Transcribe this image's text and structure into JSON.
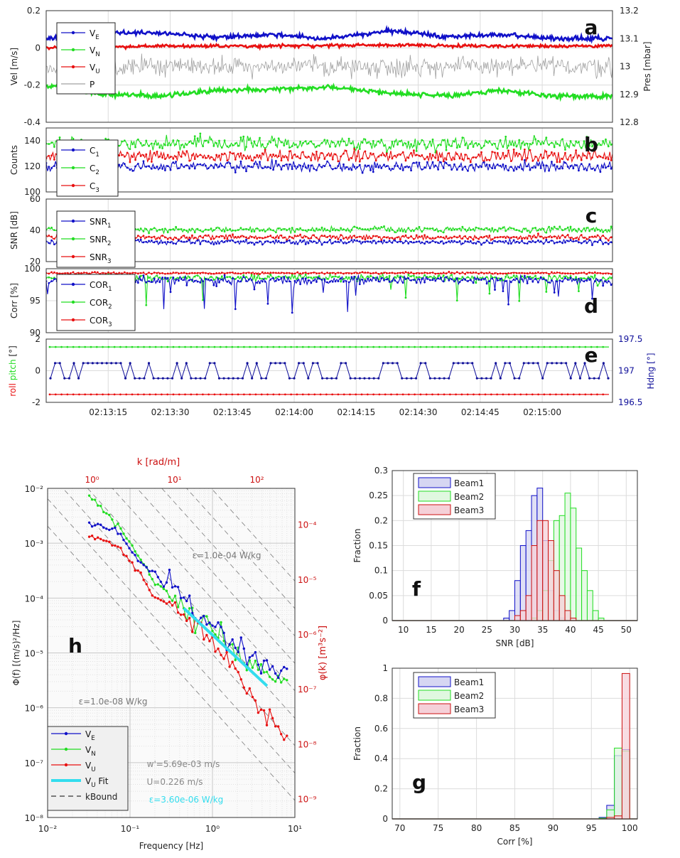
{
  "colors": {
    "blue": "#1010c8",
    "green": "#22dd22",
    "red": "#e81010",
    "gray": "#a0a0a0",
    "cyan": "#33ddee",
    "darkred": "#cc1111",
    "navy": "#10109a",
    "hist_blue_fill": "#d6d6f2",
    "hist_green_fill": "#e0f8e0",
    "hist_red_fill": "#f5d0d8"
  },
  "chart_data": [
    {
      "id": "a",
      "type": "line",
      "panel_letter": "a",
      "ylabel": "Vel [m/s]",
      "y2label": "Pres [mbar]",
      "ylim": [
        -0.4,
        0.2
      ],
      "yticks": [
        "0.2",
        "0",
        "-0.2",
        "-0.4"
      ],
      "ytick_values": [
        0.2,
        0,
        -0.2,
        -0.4
      ],
      "y2lim": [
        12.8,
        13.2
      ],
      "y2ticks": [
        "13.2",
        "13.1",
        "13",
        "12.9",
        "12.8"
      ],
      "y2tick_values": [
        13.2,
        13.1,
        13.0,
        12.9,
        12.8
      ],
      "x_range_seconds": [
        0,
        137
      ],
      "series": [
        {
          "name": "V",
          "sub": "E",
          "label": "V_E",
          "color": "blue",
          "baseline": 0.07,
          "noise": 0.012,
          "seed": 11,
          "trend": [
            [
              0,
              0.05
            ],
            [
              0.1,
              0.08
            ],
            [
              0.2,
              0.08
            ],
            [
              0.3,
              0.06
            ],
            [
              0.4,
              0.07
            ],
            [
              0.5,
              0.05
            ],
            [
              0.6,
              0.09
            ],
            [
              0.66,
              0.08
            ],
            [
              0.7,
              0.06
            ],
            [
              0.8,
              0.07
            ],
            [
              0.9,
              0.05
            ],
            [
              1,
              0.05
            ]
          ]
        },
        {
          "name": "V",
          "sub": "N",
          "label": "V_N",
          "color": "green",
          "baseline": -0.24,
          "noise": 0.012,
          "seed": 12,
          "trend": [
            [
              0,
              -0.2
            ],
            [
              0.1,
              -0.25
            ],
            [
              0.2,
              -0.26
            ],
            [
              0.3,
              -0.23
            ],
            [
              0.4,
              -0.22
            ],
            [
              0.5,
              -0.21
            ],
            [
              0.6,
              -0.24
            ],
            [
              0.7,
              -0.26
            ],
            [
              0.8,
              -0.23
            ],
            [
              0.9,
              -0.26
            ],
            [
              1,
              -0.26
            ]
          ]
        },
        {
          "name": "V",
          "sub": "U",
          "label": "V_U",
          "color": "red",
          "baseline": 0.01,
          "noise": 0.008,
          "seed": 13,
          "trend": [
            [
              0,
              0.0
            ],
            [
              0.2,
              0.01
            ],
            [
              0.4,
              0.01
            ],
            [
              0.6,
              0.015
            ],
            [
              0.8,
              0.01
            ],
            [
              1,
              0.01
            ]
          ]
        },
        {
          "name": "P",
          "sub": "",
          "label": "P",
          "color": "gray",
          "axis": "right",
          "baseline": 13.0,
          "noise": 0.035,
          "seed": 14,
          "trend": [
            [
              0,
              13.0
            ],
            [
              1,
              13.0
            ]
          ]
        }
      ]
    },
    {
      "id": "b",
      "type": "line",
      "panel_letter": "b",
      "ylabel": "Counts",
      "ylim": [
        100,
        150
      ],
      "yticks": [
        "140",
        "120",
        "100"
      ],
      "ytick_values": [
        140,
        120,
        100
      ],
      "series": [
        {
          "name": "C",
          "sub": "1",
          "label": "C_1",
          "color": "blue",
          "baseline": 120,
          "noise": 4,
          "seed": 21
        },
        {
          "name": "C",
          "sub": "2",
          "label": "C_2",
          "color": "green",
          "baseline": 138,
          "noise": 5,
          "seed": 22
        },
        {
          "name": "C",
          "sub": "3",
          "label": "C_3",
          "color": "red",
          "baseline": 128,
          "noise": 4.5,
          "seed": 23
        }
      ]
    },
    {
      "id": "c",
      "type": "line",
      "panel_letter": "c",
      "ylabel": "SNR [dB]",
      "ylim": [
        20,
        60
      ],
      "yticks": [
        "60",
        "40",
        "20"
      ],
      "ytick_values": [
        60,
        40,
        20
      ],
      "series": [
        {
          "name": "SNR",
          "sub": "1",
          "label": "SNR_1",
          "color": "blue",
          "baseline": 32.5,
          "noise": 1.5,
          "seed": 31
        },
        {
          "name": "SNR",
          "sub": "2",
          "label": "SNR_2",
          "color": "green",
          "baseline": 40.5,
          "noise": 1.8,
          "seed": 32
        },
        {
          "name": "SNR",
          "sub": "3",
          "label": "SNR_3",
          "color": "red",
          "baseline": 35.5,
          "noise": 1.6,
          "seed": 33
        }
      ]
    },
    {
      "id": "d",
      "type": "line",
      "panel_letter": "d",
      "ylabel": "Corr [%]",
      "ylim": [
        90,
        100
      ],
      "yticks": [
        "100",
        "95",
        "90"
      ],
      "ytick_values": [
        100,
        95,
        90
      ],
      "series": [
        {
          "name": "COR",
          "sub": "1",
          "label": "COR_1",
          "color": "blue",
          "baseline": 98.2,
          "noise": 0.6,
          "seed": 41,
          "dips": 0.06,
          "dipmin": 93
        },
        {
          "name": "COR",
          "sub": "2",
          "label": "COR_2",
          "color": "green",
          "baseline": 98.6,
          "noise": 0.5,
          "seed": 42,
          "dips": 0.05,
          "dipmin": 94
        },
        {
          "name": "COR",
          "sub": "3",
          "label": "COR_3",
          "color": "red",
          "baseline": 99.3,
          "noise": 0.15,
          "seed": 43
        }
      ]
    },
    {
      "id": "e",
      "type": "line",
      "panel_letter": "e",
      "ylabel_roll": "roll",
      "ylabel_pitch": "pitch",
      "ylabel_unit": "[°]",
      "y2label": "Hdng [°]",
      "ylim": [
        -2,
        2
      ],
      "yticks": [
        "2",
        "0",
        "-2"
      ],
      "ytick_values": [
        2,
        0,
        -2
      ],
      "y2lim": [
        196.5,
        197.5
      ],
      "y2ticks": [
        "197.5",
        "197",
        "196.5"
      ],
      "y2tick_values": [
        197.5,
        197.0,
        196.5
      ],
      "xticks": [
        "02:13:15",
        "02:13:30",
        "02:13:45",
        "02:14:00",
        "02:14:15",
        "02:14:30",
        "02:14:45",
        "02:15:00"
      ],
      "xtick_seconds": [
        15,
        30,
        45,
        60,
        75,
        90,
        105,
        120
      ],
      "series": [
        {
          "name": "pitch",
          "color": "green",
          "value": 1.5
        },
        {
          "name": "roll",
          "color": "red",
          "value": -1.5
        },
        {
          "name": "Hdng",
          "color": "navy",
          "axis": "right",
          "levels": [
            197.12,
            196.88
          ],
          "seed": 51
        }
      ]
    },
    {
      "id": "h",
      "type": "line",
      "scale": "log-log",
      "panel_letter": "h",
      "xlabel": "Frequency [Hz]",
      "ylabel": "Φ(f) [(m/s)²/Hz]",
      "top_xlabel": "k [rad/m]",
      "right_ylabel": "φ(k) [m³s⁻²]",
      "xlim": [
        0.01,
        10
      ],
      "ylim": [
        1e-08,
        0.01
      ],
      "xticks": [
        "10⁻²",
        "10⁻¹",
        "10⁰",
        "10¹"
      ],
      "xtick_values": [
        0.01,
        0.1,
        1,
        10
      ],
      "yticks": [
        "10⁻²",
        "10⁻³",
        "10⁻⁴",
        "10⁻⁵",
        "10⁻⁶",
        "10⁻⁷",
        "10⁻⁸"
      ],
      "ytick_values": [
        0.01,
        0.001,
        0.0001,
        1e-05,
        1e-06,
        1e-07,
        1e-08
      ],
      "top_ticks": [
        "10⁰",
        "10¹",
        "10²"
      ],
      "top_tick_freqs": [
        0.0346,
        0.346,
        3.46
      ],
      "right_ticks": [
        "10⁻⁴",
        "10⁻⁵",
        "10⁻⁶",
        "10⁻⁷",
        "10⁻⁸",
        "10⁻⁹"
      ],
      "right_tick_values": [
        0.0022,
        0.00022,
        2.2e-05,
        2.2e-06,
        2.2e-07,
        2.2e-08
      ],
      "series": [
        {
          "name": "V",
          "sub": "E",
          "label": "V_E",
          "color": "blue",
          "seed": 61,
          "points": [
            [
              0.032,
              0.0022
            ],
            [
              0.064,
              0.002
            ],
            [
              0.1,
              0.0008
            ],
            [
              0.13,
              0.0004
            ],
            [
              0.2,
              0.0003
            ],
            [
              0.25,
              0.00015
            ],
            [
              0.3,
              0.00025
            ],
            [
              0.35,
              0.0002
            ],
            [
              0.5,
              7e-05
            ],
            [
              1,
              3e-05
            ],
            [
              2,
              1.2e-05
            ],
            [
              3,
              8e-06
            ],
            [
              5,
              5e-06
            ],
            [
              8,
              4e-06
            ]
          ]
        },
        {
          "name": "V",
          "sub": "N",
          "label": "V_N",
          "color": "green",
          "seed": 62,
          "points": [
            [
              0.032,
              0.0075
            ],
            [
              0.064,
              0.0025
            ],
            [
              0.1,
              0.001
            ],
            [
              0.15,
              0.0004
            ],
            [
              0.2,
              0.00018
            ],
            [
              0.3,
              0.00012
            ],
            [
              0.5,
              6e-05
            ],
            [
              1,
              2.5e-05
            ],
            [
              2,
              1e-05
            ],
            [
              3,
              6e-06
            ],
            [
              5,
              4e-06
            ],
            [
              8,
              3e-06
            ]
          ]
        },
        {
          "name": "V",
          "sub": "U",
          "label": "V_U",
          "color": "red",
          "seed": 63,
          "points": [
            [
              0.032,
              0.0013
            ],
            [
              0.064,
              0.001
            ],
            [
              0.1,
              0.0005
            ],
            [
              0.15,
              0.0002
            ],
            [
              0.2,
              0.0001
            ],
            [
              0.3,
              8e-05
            ],
            [
              0.5,
              4e-05
            ],
            [
              1,
              1.5e-05
            ],
            [
              2,
              5e-06
            ],
            [
              3,
              2e-06
            ],
            [
              5,
              6e-07
            ],
            [
              8,
              2.5e-07
            ]
          ]
        },
        {
          "name": "V_U Fit",
          "label": "V_U Fit",
          "color": "cyan",
          "points": [
            [
              0.45,
              6.5e-05
            ],
            [
              4.6,
              2.5e-06
            ]
          ]
        },
        {
          "name": "kBound",
          "label": "kBound",
          "color": "#333333",
          "style": "dashed"
        }
      ],
      "reference_lines": [
        {
          "label": "ε=1.0e-04 W/kg",
          "at_freq": 0.5,
          "value": 0.00053
        },
        {
          "label": "ε=1.0e-08 W/kg",
          "at_freq": 0.5,
          "value": 1.15e-06
        }
      ],
      "annotations": [
        "w'=5.69e-03 m/s",
        "U=0.226 m/s",
        "ε=3.60e-06 W/kg"
      ],
      "legend": [
        "V_E",
        "V_N",
        "V_U",
        "V_U Fit",
        "kBound"
      ]
    },
    {
      "id": "f",
      "type": "bar",
      "style": "histogram",
      "panel_letter": "f",
      "xlabel": "SNR [dB]",
      "ylabel": "Fraction",
      "xlim": [
        8,
        52
      ],
      "ylim": [
        0,
        0.3
      ],
      "xticks": [
        "10",
        "15",
        "20",
        "25",
        "30",
        "35",
        "40",
        "45",
        "50"
      ],
      "xtick_values": [
        10,
        15,
        20,
        25,
        30,
        35,
        40,
        45,
        50
      ],
      "yticks": [
        "0",
        "0.05",
        "0.1",
        "0.15",
        "0.2",
        "0.25",
        "0.3"
      ],
      "ytick_values": [
        0,
        0.05,
        0.1,
        0.15,
        0.2,
        0.25,
        0.3
      ],
      "bin_width": 1,
      "series": [
        {
          "name": "Beam1",
          "color": "blue",
          "fill": "hist_blue_fill",
          "bins": [
            [
              28.5,
              0.005
            ],
            [
              29.5,
              0.02
            ],
            [
              30.5,
              0.08
            ],
            [
              31.5,
              0.15
            ],
            [
              32.5,
              0.18
            ],
            [
              33.5,
              0.25
            ],
            [
              34.5,
              0.265
            ],
            [
              35.5,
              0.16
            ],
            [
              36.5,
              0.06
            ],
            [
              37.5,
              0.02
            ],
            [
              38.5,
              0.005
            ]
          ]
        },
        {
          "name": "Beam2",
          "color": "green",
          "fill": "hist_green_fill",
          "bins": [
            [
              33.5,
              0.005
            ],
            [
              34.5,
              0.02
            ],
            [
              35.5,
              0.06
            ],
            [
              36.5,
              0.12
            ],
            [
              37.5,
              0.2
            ],
            [
              38.5,
              0.21
            ],
            [
              39.5,
              0.255
            ],
            [
              40.5,
              0.225
            ],
            [
              41.5,
              0.145
            ],
            [
              42.5,
              0.1
            ],
            [
              43.5,
              0.06
            ],
            [
              44.5,
              0.02
            ],
            [
              45.5,
              0.005
            ]
          ]
        },
        {
          "name": "Beam3",
          "color": "darkred",
          "fill": "hist_red_fill",
          "bins": [
            [
              30.5,
              0.01
            ],
            [
              31.5,
              0.02
            ],
            [
              32.5,
              0.05
            ],
            [
              33.5,
              0.15
            ],
            [
              34.5,
              0.2
            ],
            [
              35.5,
              0.2
            ],
            [
              36.5,
              0.16
            ],
            [
              37.5,
              0.1
            ],
            [
              38.5,
              0.05
            ],
            [
              39.5,
              0.02
            ],
            [
              40.5,
              0.005
            ]
          ]
        }
      ]
    },
    {
      "id": "g",
      "type": "bar",
      "style": "histogram",
      "panel_letter": "g",
      "xlabel": "Corr [%]",
      "ylabel": "Fraction",
      "xlim": [
        69,
        101
      ],
      "ylim": [
        0,
        1
      ],
      "xticks": [
        "70",
        "75",
        "80",
        "85",
        "90",
        "95",
        "100"
      ],
      "xtick_values": [
        70,
        75,
        80,
        85,
        90,
        95,
        100
      ],
      "yticks": [
        "0",
        "0.2",
        "0.4",
        "0.6",
        "0.8",
        "1"
      ],
      "ytick_values": [
        0,
        0.2,
        0.4,
        0.6,
        0.8,
        1
      ],
      "bin_width": 1,
      "series": [
        {
          "name": "Beam1",
          "color": "blue",
          "fill": "hist_blue_fill",
          "bins": [
            [
              96.5,
              0.01
            ],
            [
              97.5,
              0.09
            ],
            [
              98.5,
              0.42
            ],
            [
              99.5,
              0.46
            ]
          ]
        },
        {
          "name": "Beam2",
          "color": "green",
          "fill": "hist_green_fill",
          "bins": [
            [
              96.5,
              0.005
            ],
            [
              97.5,
              0.06
            ],
            [
              98.5,
              0.47
            ],
            [
              99.5,
              0.45
            ]
          ]
        },
        {
          "name": "Beam3",
          "color": "darkred",
          "fill": "hist_red_fill",
          "bins": [
            [
              97.5,
              0.01
            ],
            [
              98.5,
              0.02
            ],
            [
              99.5,
              0.965
            ]
          ]
        }
      ]
    }
  ]
}
